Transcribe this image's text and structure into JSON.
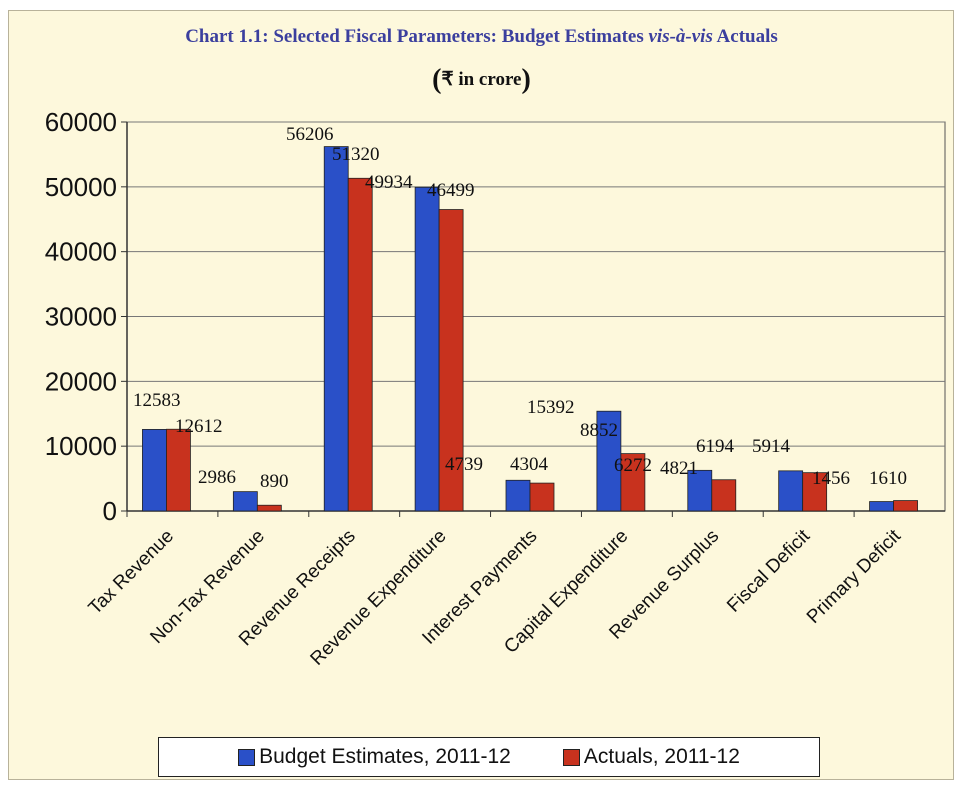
{
  "chart_data": {
    "type": "bar",
    "title_parts": {
      "before": "Chart 1.1: Selected Fiscal Parameters: Budget Estimates ",
      "italic": "vis-à-vis",
      "after": " Actuals"
    },
    "subtitle": "₹ in crore",
    "categories": [
      "Tax Revenue",
      "Non-Tax Revenue",
      "Revenue Receipts",
      "Revenue Expenditure",
      "Interest Payments",
      "Capital Expenditure",
      "Revenue Surplus",
      "Fiscal Deficit",
      "Primary Deficit"
    ],
    "series": [
      {
        "name": "Budget Estimates, 2011-12",
        "color": "#2a50c8",
        "values": [
          12583,
          2986,
          56206,
          49934,
          4739,
          15392,
          6272,
          6194,
          1456
        ]
      },
      {
        "name": "Actuals, 2011-12",
        "color": "#c8321e",
        "values": [
          12612,
          890,
          51320,
          46499,
          4304,
          8852,
          4821,
          5914,
          1610
        ]
      }
    ],
    "ylim": [
      0,
      60000
    ],
    "yticks": [
      0,
      10000,
      20000,
      30000,
      40000,
      50000,
      60000
    ],
    "grid": true,
    "legend_position": "bottom"
  }
}
